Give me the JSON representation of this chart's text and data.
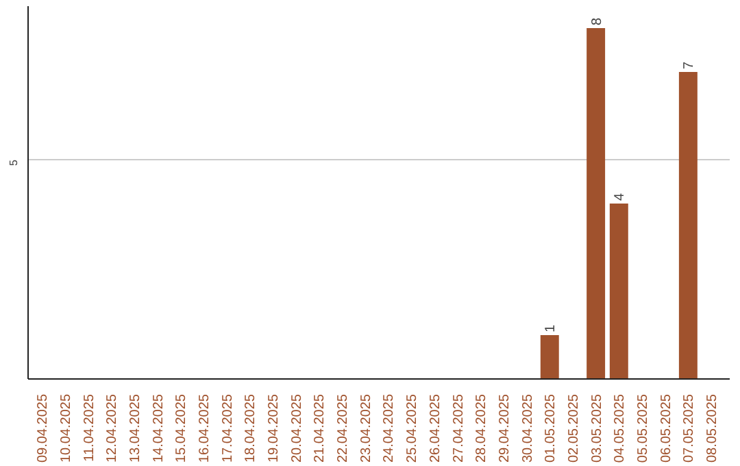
{
  "chart_data": {
    "type": "bar",
    "categories": [
      "09.04.2025",
      "10.04.2025",
      "11.04.2025",
      "12.04.2025",
      "13.04.2025",
      "14.04.2025",
      "15.04.2025",
      "16.04.2025",
      "17.04.2025",
      "18.04.2025",
      "19.04.2025",
      "20.04.2025",
      "21.04.2025",
      "22.04.2025",
      "23.04.2025",
      "24.04.2025",
      "25.04.2025",
      "26.04.2025",
      "27.04.2025",
      "28.04.2025",
      "29.04.2025",
      "30.04.2025",
      "01.05.2025",
      "02.05.2025",
      "03.05.2025",
      "04.05.2025",
      "05.05.2025",
      "06.05.2025",
      "07.05.2025",
      "08.05.2025"
    ],
    "values": [
      null,
      null,
      null,
      null,
      null,
      null,
      null,
      null,
      null,
      null,
      null,
      null,
      null,
      null,
      null,
      null,
      null,
      null,
      null,
      null,
      null,
      null,
      1,
      null,
      8,
      4,
      null,
      null,
      7,
      null
    ],
    "color": "#a0522d",
    "ylim": [
      0,
      8.5
    ],
    "yticks": [
      5
    ],
    "grid": "y",
    "data_labels": true
  }
}
